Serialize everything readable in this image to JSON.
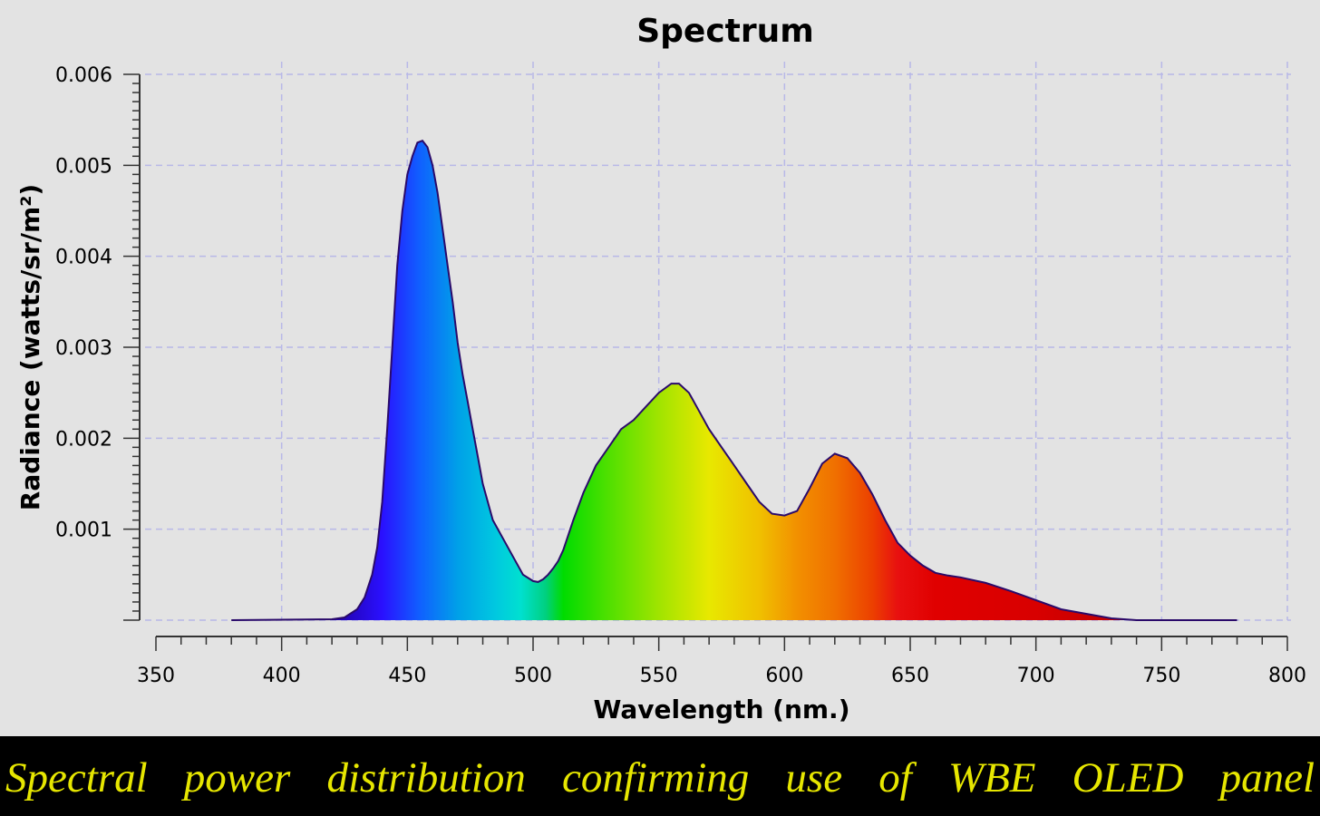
{
  "caption": "Spectral power distribution confirming use of WBE OLED panel",
  "colors": {
    "background": "#e3e3e3",
    "grid": "#b8b8e8",
    "outline": "#2a0a6a",
    "caption_background": "#000000",
    "caption_text": "#e6e600"
  },
  "chart_data": {
    "type": "area",
    "title": "Spectrum",
    "xlabel": "Wavelength (nm.)",
    "ylabel": "Radiance (watts/sr/m²)",
    "xlim": [
      350,
      800
    ],
    "ylim": [
      0,
      0.006
    ],
    "x_ticks": [
      350,
      400,
      450,
      500,
      550,
      600,
      650,
      700,
      750,
      800
    ],
    "x_tick_labels": [
      "350",
      "400",
      "450",
      "500",
      "550",
      "600",
      "650",
      "700",
      "750",
      "800"
    ],
    "y_ticks": [
      0.001,
      0.002,
      0.003,
      0.004,
      0.005,
      0.006
    ],
    "y_tick_labels": [
      "0.001",
      "0.002",
      "0.003",
      "0.004",
      "0.005",
      "0.006"
    ],
    "grid": true,
    "fill": "visible-spectrum color gradient under the curve",
    "series": [
      {
        "x": [
          380,
          420,
          425,
          430,
          433,
          436,
          438,
          440,
          442,
          444,
          446,
          448,
          450,
          452,
          454,
          456,
          458,
          460,
          462,
          464,
          466,
          468,
          470,
          472,
          474,
          476,
          478,
          480,
          484,
          488,
          492,
          496,
          500,
          502,
          504,
          506,
          508,
          510,
          512,
          516,
          520,
          525,
          530,
          535,
          540,
          545,
          550,
          555,
          558,
          562,
          566,
          570,
          575,
          580,
          585,
          590,
          595,
          600,
          605,
          610,
          615,
          620,
          625,
          630,
          635,
          640,
          645,
          650,
          655,
          660,
          665,
          670,
          680,
          690,
          700,
          710,
          720,
          730,
          740,
          780
        ],
        "y": [
          0.0,
          1e-05,
          3e-05,
          0.00012,
          0.00025,
          0.0005,
          0.0008,
          0.0013,
          0.0021,
          0.003,
          0.0039,
          0.0045,
          0.0049,
          0.0051,
          0.00525,
          0.00527,
          0.0052,
          0.005,
          0.0047,
          0.0043,
          0.0039,
          0.0035,
          0.00305,
          0.0027,
          0.0024,
          0.0021,
          0.0018,
          0.0015,
          0.0011,
          0.0009,
          0.0007,
          0.0005,
          0.00043,
          0.00042,
          0.00045,
          0.0005,
          0.00057,
          0.00065,
          0.00077,
          0.0011,
          0.0014,
          0.0017,
          0.0019,
          0.0021,
          0.0022,
          0.00235,
          0.0025,
          0.0026,
          0.0026,
          0.0025,
          0.0023,
          0.0021,
          0.0019,
          0.0017,
          0.0015,
          0.0013,
          0.00117,
          0.00115,
          0.0012,
          0.00145,
          0.00172,
          0.00183,
          0.00178,
          0.00162,
          0.00138,
          0.0011,
          0.00085,
          0.00071,
          0.0006,
          0.00052,
          0.00049,
          0.00047,
          0.00041,
          0.00032,
          0.00022,
          0.00012,
          7e-05,
          2e-05,
          0.0,
          0.0
        ]
      }
    ]
  }
}
